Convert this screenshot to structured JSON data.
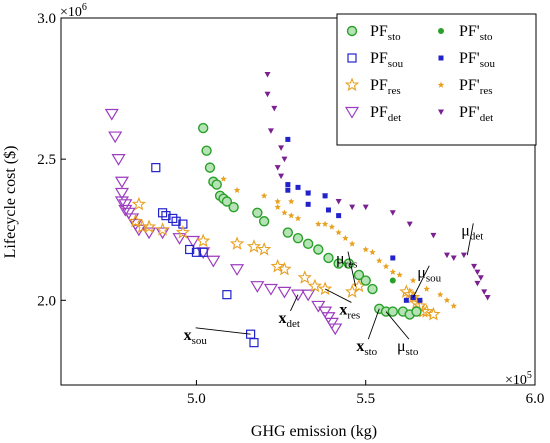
{
  "chart_data": {
    "type": "scatter",
    "xlabel": "GHG emission (kg)",
    "ylabel": "Lifecycle cost ($)",
    "x_multiplier_label": "×10",
    "x_multiplier_exp": "5",
    "y_multiplier_label": "×10",
    "y_multiplier_exp": "6",
    "xlim": [
      4.6,
      6.0
    ],
    "ylim": [
      1.7,
      3.0
    ],
    "xticks": [
      {
        "value": 5.0,
        "label": "5.0"
      },
      {
        "value": 5.5,
        "label": "5.5"
      },
      {
        "value": 6.0,
        "label": "6.0"
      }
    ],
    "yticks": [
      {
        "value": 2.0,
        "label": "2.0"
      },
      {
        "value": 2.5,
        "label": "2.5"
      },
      {
        "value": 3.0,
        "label": "3.0"
      }
    ],
    "legend_position": "top-right",
    "series": [
      {
        "key": "pf_sto",
        "name_main": "PF",
        "name_sub": "sto",
        "name_prime": false,
        "marker": "circle-open",
        "color": "#2aa02a",
        "points": [
          [
            5.02,
            2.61
          ],
          [
            5.03,
            2.53
          ],
          [
            5.04,
            2.47
          ],
          [
            5.05,
            2.42
          ],
          [
            5.06,
            2.41
          ],
          [
            5.07,
            2.37
          ],
          [
            5.08,
            2.36
          ],
          [
            5.09,
            2.35
          ],
          [
            5.11,
            2.33
          ],
          [
            5.18,
            2.31
          ],
          [
            5.2,
            2.28
          ],
          [
            5.27,
            2.24
          ],
          [
            5.3,
            2.22
          ],
          [
            5.33,
            2.2
          ],
          [
            5.36,
            2.18
          ],
          [
            5.39,
            2.15
          ],
          [
            5.42,
            2.13
          ],
          [
            5.45,
            2.13
          ],
          [
            5.48,
            2.09
          ],
          [
            5.5,
            2.07
          ],
          [
            5.52,
            2.04
          ],
          [
            5.54,
            1.97
          ],
          [
            5.56,
            1.96
          ],
          [
            5.58,
            1.96
          ],
          [
            5.61,
            1.96
          ],
          [
            5.63,
            1.95
          ],
          [
            5.65,
            1.96
          ]
        ]
      },
      {
        "key": "pf_sou",
        "name_main": "PF",
        "name_sub": "sou",
        "name_prime": false,
        "marker": "square-open",
        "color": "#2222cc",
        "points": [
          [
            4.88,
            2.47
          ],
          [
            4.9,
            2.31
          ],
          [
            4.91,
            2.3
          ],
          [
            4.93,
            2.29
          ],
          [
            4.94,
            2.28
          ],
          [
            4.96,
            2.27
          ],
          [
            4.98,
            2.18
          ],
          [
            5.0,
            2.17
          ],
          [
            5.02,
            2.17
          ],
          [
            5.09,
            2.02
          ],
          [
            5.16,
            1.88
          ],
          [
            5.17,
            1.85
          ]
        ]
      },
      {
        "key": "pf_res",
        "name_main": "PF",
        "name_sub": "res",
        "name_prime": false,
        "marker": "star-open",
        "color": "#e8a020",
        "points": [
          [
            4.83,
            2.34
          ],
          [
            4.82,
            2.28
          ],
          [
            4.84,
            2.26
          ],
          [
            4.86,
            2.26
          ],
          [
            4.9,
            2.25
          ],
          [
            4.96,
            2.24
          ],
          [
            5.02,
            2.21
          ],
          [
            5.12,
            2.2
          ],
          [
            5.17,
            2.19
          ],
          [
            5.2,
            2.18
          ],
          [
            5.24,
            2.12
          ],
          [
            5.26,
            2.11
          ],
          [
            5.32,
            2.08
          ],
          [
            5.35,
            2.05
          ],
          [
            5.38,
            2.04
          ],
          [
            5.46,
            2.03
          ],
          [
            5.48,
            2.05
          ],
          [
            5.62,
            2.03
          ],
          [
            5.63,
            2.02
          ],
          [
            5.64,
            2.01
          ],
          [
            5.65,
            1.99
          ],
          [
            5.66,
            1.98
          ],
          [
            5.67,
            1.96
          ],
          [
            5.68,
            1.96
          ],
          [
            5.7,
            1.95
          ]
        ]
      },
      {
        "key": "pf_det",
        "name_main": "PF",
        "name_sub": "det",
        "name_prime": false,
        "marker": "triangle-open",
        "color": "#9c3dbf",
        "points": [
          [
            4.75,
            2.66
          ],
          [
            4.76,
            2.58
          ],
          [
            4.77,
            2.5
          ],
          [
            4.78,
            2.42
          ],
          [
            4.78,
            2.38
          ],
          [
            4.78,
            2.35
          ],
          [
            4.79,
            2.34
          ],
          [
            4.79,
            2.32
          ],
          [
            4.8,
            2.31
          ],
          [
            4.81,
            2.29
          ],
          [
            4.82,
            2.27
          ],
          [
            4.83,
            2.25
          ],
          [
            4.86,
            2.24
          ],
          [
            4.9,
            2.24
          ],
          [
            4.95,
            2.22
          ],
          [
            4.99,
            2.21
          ],
          [
            5.02,
            2.17
          ],
          [
            5.05,
            2.14
          ],
          [
            5.12,
            2.11
          ],
          [
            5.18,
            2.05
          ],
          [
            5.22,
            2.04
          ],
          [
            5.26,
            2.03
          ],
          [
            5.3,
            2.02
          ],
          [
            5.33,
            2.02
          ],
          [
            5.36,
            1.98
          ],
          [
            5.38,
            1.96
          ],
          [
            5.39,
            1.94
          ],
          [
            5.4,
            1.92
          ],
          [
            5.41,
            1.9
          ]
        ]
      },
      {
        "key": "pfp_sto",
        "name_main": "PF",
        "name_sub": "sto",
        "name_prime": true,
        "marker": "circle-filled",
        "color": "#2aa02a",
        "points": [
          [
            5.58,
            2.07
          ]
        ]
      },
      {
        "key": "pfp_sou",
        "name_main": "PF",
        "name_sub": "sou",
        "name_prime": true,
        "marker": "square-filled",
        "color": "#2222cc",
        "points": [
          [
            5.27,
            2.57
          ],
          [
            5.27,
            2.41
          ],
          [
            5.27,
            2.39
          ],
          [
            5.3,
            2.4
          ],
          [
            5.33,
            2.38
          ],
          [
            5.33,
            2.34
          ],
          [
            5.38,
            2.37
          ],
          [
            5.39,
            2.32
          ],
          [
            5.42,
            2.3
          ],
          [
            5.58,
            2.15
          ],
          [
            5.62,
            2.0
          ],
          [
            5.64,
            2.01
          ],
          [
            5.66,
            2.0
          ]
        ]
      },
      {
        "key": "pfp_res",
        "name_main": "PF",
        "name_sub": "res",
        "name_prime": true,
        "marker": "star-filled",
        "color": "#e8a020",
        "points": [
          [
            5.08,
            2.43
          ],
          [
            5.12,
            2.39
          ],
          [
            5.2,
            2.37
          ],
          [
            5.24,
            2.35
          ],
          [
            5.28,
            2.35
          ],
          [
            5.24,
            2.33
          ],
          [
            5.26,
            2.31
          ],
          [
            5.28,
            2.3
          ],
          [
            5.3,
            2.29
          ],
          [
            5.36,
            2.27
          ],
          [
            5.38,
            2.27
          ],
          [
            5.4,
            2.26
          ],
          [
            5.42,
            2.24
          ],
          [
            5.44,
            2.22
          ],
          [
            5.46,
            2.2
          ],
          [
            5.5,
            2.18
          ],
          [
            5.52,
            2.17
          ],
          [
            5.54,
            2.14
          ],
          [
            5.56,
            2.12
          ],
          [
            5.58,
            2.1
          ],
          [
            5.6,
            2.09
          ],
          [
            5.64,
            2.07
          ],
          [
            5.68,
            2.04
          ],
          [
            5.72,
            2.02
          ],
          [
            5.74,
            2.0
          ],
          [
            5.76,
            1.98
          ]
        ]
      },
      {
        "key": "pfp_det",
        "name_main": "PF",
        "name_sub": "det",
        "name_prime": true,
        "marker": "triangle-filled",
        "color": "#7a2090",
        "points": [
          [
            5.21,
            2.8
          ],
          [
            5.21,
            2.73
          ],
          [
            5.23,
            2.68
          ],
          [
            5.22,
            2.6
          ],
          [
            5.25,
            2.54
          ],
          [
            5.26,
            2.5
          ],
          [
            5.24,
            2.47
          ],
          [
            5.25,
            2.44
          ],
          [
            5.33,
            2.38
          ],
          [
            5.38,
            2.37
          ],
          [
            5.42,
            2.35
          ],
          [
            5.46,
            2.33
          ],
          [
            5.5,
            2.33
          ],
          [
            5.58,
            2.31
          ],
          [
            5.63,
            2.27
          ],
          [
            5.7,
            2.23
          ],
          [
            5.74,
            2.16
          ],
          [
            5.76,
            2.15
          ],
          [
            5.79,
            2.16
          ],
          [
            5.82,
            2.12
          ],
          [
            5.83,
            2.1
          ],
          [
            5.84,
            2.08
          ],
          [
            5.83,
            2.06
          ],
          [
            5.85,
            2.03
          ],
          [
            5.86,
            2.01
          ]
        ]
      }
    ],
    "annotations": [
      {
        "key": "x_sou",
        "main": "x",
        "sub": "sou",
        "bold": true,
        "tx": 4.98,
        "ty": 1.86,
        "px": 5.16,
        "py": 1.88
      },
      {
        "key": "x_det",
        "main": "x",
        "sub": "det",
        "bold": true,
        "tx": 5.26,
        "ty": 1.92,
        "px": 5.3,
        "py": 2.02
      },
      {
        "key": "x_res",
        "main": "x",
        "sub": "res",
        "bold": true,
        "tx": 5.44,
        "ty": 1.95,
        "px": 5.38,
        "py": 2.04
      },
      {
        "key": "x_sto",
        "main": "x",
        "sub": "sto",
        "bold": true,
        "tx": 5.49,
        "ty": 1.82,
        "px": 5.54,
        "py": 1.97
      },
      {
        "key": "mu_sto",
        "main": "μ",
        "sub": "sto",
        "bold": false,
        "tx": 5.61,
        "ty": 1.82,
        "px": 5.56,
        "py": 1.96
      },
      {
        "key": "mu_sou",
        "main": "μ",
        "sub": "sou",
        "bold": false,
        "tx": 5.67,
        "ty": 2.08,
        "px": 5.64,
        "py": 2.01
      },
      {
        "key": "mu_res",
        "main": "μ",
        "sub": "res",
        "bold": false,
        "tx": 5.43,
        "ty": 2.13,
        "px": 5.47,
        "py": 2.05
      },
      {
        "key": "mu_det",
        "main": "μ",
        "sub": "det",
        "bold": false,
        "tx": 5.8,
        "ty": 2.23,
        "px": 5.8,
        "py": 2.16
      }
    ]
  }
}
